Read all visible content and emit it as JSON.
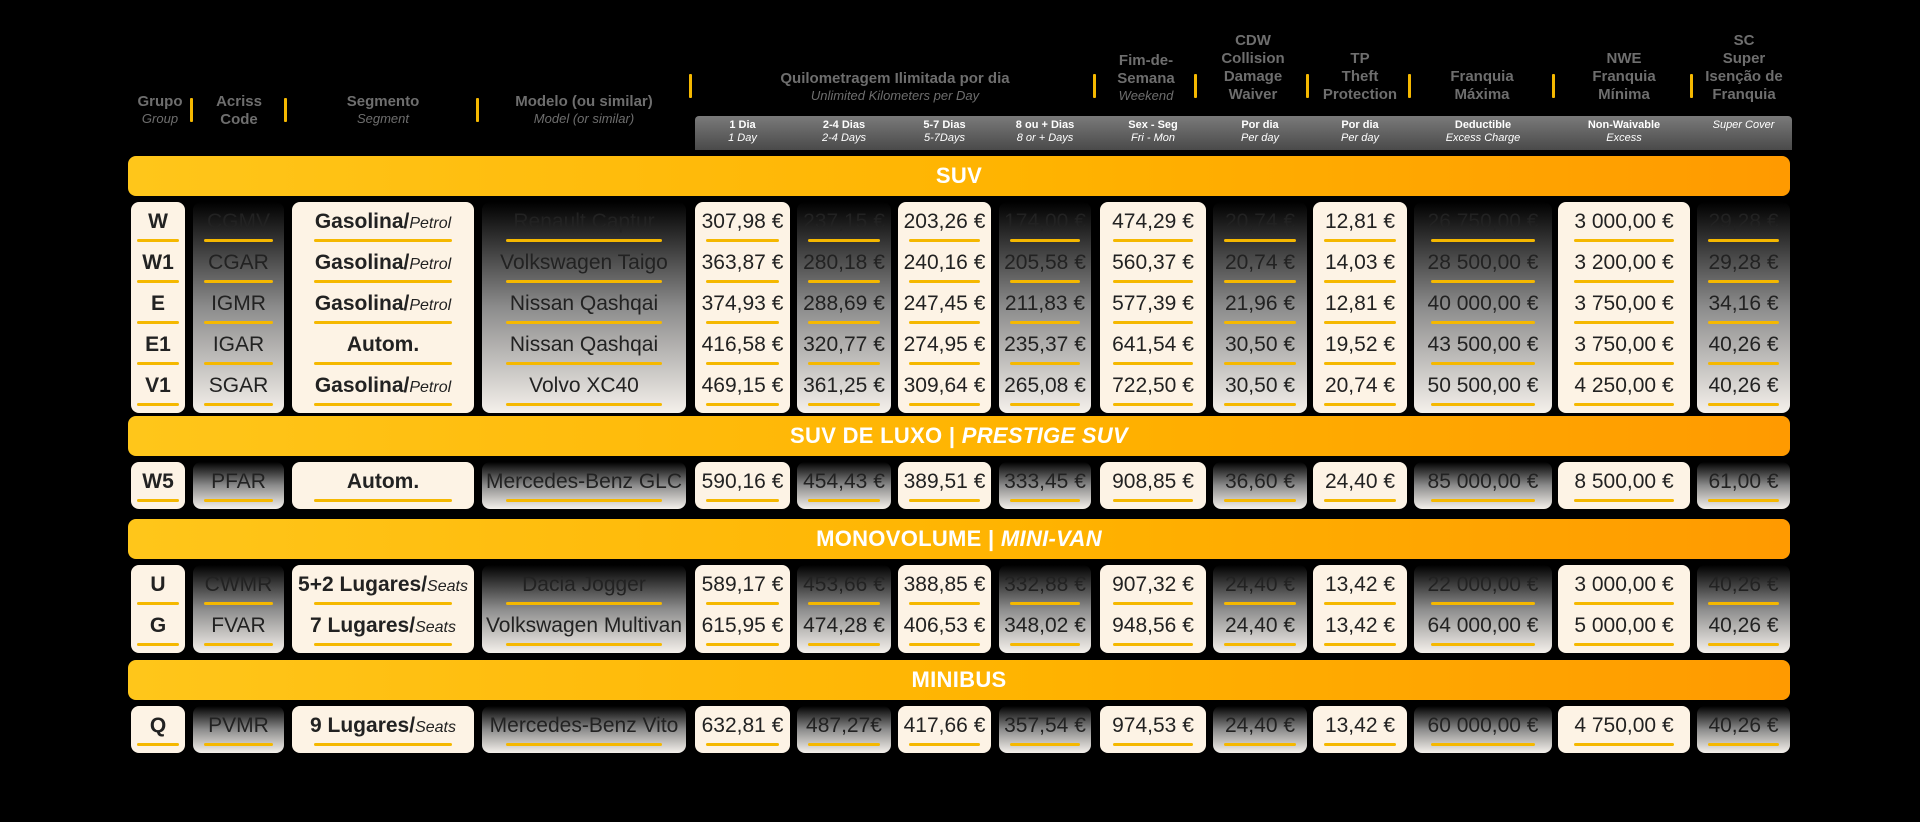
{
  "headers": {
    "grupo": {
      "pt": "Grupo",
      "en": "Group"
    },
    "acriss": {
      "pt1": "Acriss",
      "pt2": "Code"
    },
    "segmento": {
      "pt": "Segmento",
      "en": "Segment"
    },
    "modelo": {
      "pt": "Modelo (ou similar)",
      "en": "Model (or similar)"
    },
    "quilometragem": {
      "pt": "Quilometragem Ilimitada por dia",
      "en": "Unlimited Kilometers per Day"
    },
    "fimdesemana": {
      "pt1": "Fim-de-",
      "pt2": "Semana",
      "en": "Weekend"
    },
    "cdw": {
      "l1": "CDW",
      "l2": "Collision",
      "l3": "Damage",
      "l4": "Waiver"
    },
    "tp": {
      "l1": "TP",
      "l2": "Theft",
      "l3": "Protection"
    },
    "franquia": {
      "l1": "Franquia",
      "l2": "Máxima"
    },
    "nwe": {
      "l1": "NWE",
      "l2": "Franquia",
      "l3": "Mínima"
    },
    "sc": {
      "l1": "SC",
      "l2": "Super",
      "l3": "Isenção de",
      "l4": "Franquia"
    }
  },
  "subheaders": [
    {
      "pt": "1 Dia",
      "en": "1 Day"
    },
    {
      "pt": "2-4 Dias",
      "en": "2-4 Days"
    },
    {
      "pt": "5-7 Dias",
      "en": "5-7Days"
    },
    {
      "pt": "8 ou + Dias",
      "en": "8 or + Days"
    },
    {
      "pt": "Sex - Seg",
      "en": "Fri - Mon"
    },
    {
      "pt": "Por dia",
      "en": "Per day"
    },
    {
      "pt": "Por dia",
      "en": "Per day"
    },
    {
      "pt": "Deductible",
      "en": "Excess Charge"
    },
    {
      "pt": "Non-Waivable",
      "en": "Excess"
    },
    {
      "pt": "",
      "en": "Super Cover"
    }
  ],
  "sections": [
    {
      "title": "SUV",
      "title_en": "",
      "rows": [
        {
          "group": "W",
          "acriss": "CGMV",
          "seg": "Gasolina/",
          "seg_en": "Petrol",
          "model": "Renault Captur",
          "p1": "307,98 €",
          "p2": "237,15 €",
          "p3": "203,26 €",
          "p4": "174,00 €",
          "we": "474,29 €",
          "cdw": "20,74 €",
          "tp": "12,81 €",
          "ded": "26 750,00 €",
          "nwe": "3 000,00 €",
          "sc": "29,28 €"
        },
        {
          "group": "W1",
          "acriss": "CGAR",
          "seg": "Gasolina/",
          "seg_en": "Petrol",
          "model": "Volkswagen Taigo",
          "p1": "363,87 €",
          "p2": "280,18 €",
          "p3": "240,16 €",
          "p4": "205,58 €",
          "we": "560,37 €",
          "cdw": "20,74 €",
          "tp": "14,03 €",
          "ded": "28 500,00 €",
          "nwe": "3 200,00 €",
          "sc": "29,28 €"
        },
        {
          "group": "E",
          "acriss": "IGMR",
          "seg": "Gasolina/",
          "seg_en": "Petrol",
          "model": "Nissan Qashqai",
          "p1": "374,93 €",
          "p2": "288,69 €",
          "p3": "247,45 €",
          "p4": "211,83 €",
          "we": "577,39 €",
          "cdw": "21,96 €",
          "tp": "12,81 €",
          "ded": "40 000,00 €",
          "nwe": "3 750,00 €",
          "sc": "34,16 €"
        },
        {
          "group": "E1",
          "acriss": "IGAR",
          "seg": "Autom.",
          "seg_en": "",
          "model": "Nissan Qashqai",
          "p1": "416,58 €",
          "p2": "320,77 €",
          "p3": "274,95 €",
          "p4": "235,37 €",
          "we": "641,54 €",
          "cdw": "30,50 €",
          "tp": "19,52 €",
          "ded": "43 500,00 €",
          "nwe": "3 750,00 €",
          "sc": "40,26 €"
        },
        {
          "group": "V1",
          "acriss": "SGAR",
          "seg": "Gasolina/",
          "seg_en": "Petrol",
          "model": "Volvo XC40",
          "p1": "469,15 €",
          "p2": "361,25 €",
          "p3": "309,64 €",
          "p4": "265,08 €",
          "we": "722,50 €",
          "cdw": "30,50 €",
          "tp": "20,74 €",
          "ded": "50 500,00 €",
          "nwe": "4 250,00 €",
          "sc": "40,26 €"
        }
      ]
    },
    {
      "title": "SUV DE LUXO",
      "title_en": "PRESTIGE SUV",
      "rows": [
        {
          "group": "W5",
          "acriss": "PFAR",
          "seg": "Autom.",
          "seg_en": "",
          "model": "Mercedes-Benz GLC",
          "p1": "590,16 €",
          "p2": "454,43 €",
          "p3": "389,51 €",
          "p4": "333,45 €",
          "we": "908,85 €",
          "cdw": "36,60 €",
          "tp": "24,40 €",
          "ded": "85 000,00 €",
          "nwe": "8 500,00 €",
          "sc": "61,00 €"
        }
      ]
    },
    {
      "title": "MONOVOLUME",
      "title_en": "MINI-VAN",
      "rows": [
        {
          "group": "U",
          "acriss": "CWMR",
          "seg": "5+2 Lugares/",
          "seg_en": "Seats",
          "model": "Dacia Jogger",
          "p1": "589,17 €",
          "p2": "453,66 €",
          "p3": "388,85 €",
          "p4": "332,88 €",
          "we": "907,32 €",
          "cdw": "24,40 €",
          "tp": "13,42 €",
          "ded": "22 000,00 €",
          "nwe": "3 000,00 €",
          "sc": "40,26 €"
        },
        {
          "group": "G",
          "acriss": "FVAR",
          "seg": "7 Lugares/",
          "seg_en": "Seats",
          "model": "Volkswagen Multivan",
          "p1": "615,95 €",
          "p2": "474,28 €",
          "p3": "406,53 €",
          "p4": "348,02 €",
          "we": "948,56 €",
          "cdw": "24,40 €",
          "tp": "13,42 €",
          "ded": "64 000,00 €",
          "nwe": "5 000,00 €",
          "sc": "40,26 €"
        }
      ]
    },
    {
      "title": "MINIBUS",
      "title_en": "",
      "rows": [
        {
          "group": "Q",
          "acriss": "PVMR",
          "seg": "9 Lugares/",
          "seg_en": "Seats",
          "model": "Mercedes-Benz Vito",
          "p1": "632,81 €",
          "p2": "487,27€",
          "p3": "417,66 €",
          "p4": "357,54 €",
          "we": "974,53 €",
          "cdw": "24,40 €",
          "tp": "13,42 €",
          "ded": "60 000,00 €",
          "nwe": "4 750,00 €",
          "sc": "40,26 €"
        }
      ]
    }
  ]
}
